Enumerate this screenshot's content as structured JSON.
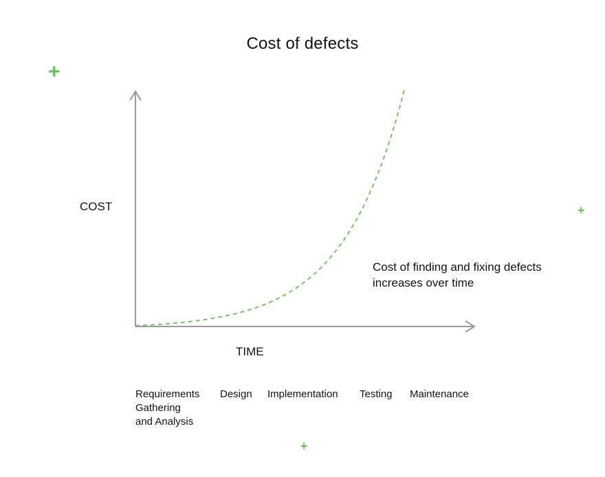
{
  "chart_data": {
    "type": "line",
    "title": "Cost of defects",
    "xlabel": "TIME",
    "ylabel": "COST",
    "annotation": "Cost of finding and fixing defects increases over time",
    "phases": [
      "Requirements\nGathering\nand Analysis",
      "Design",
      "Implementation",
      "Testing",
      "Maintenance"
    ],
    "curve": {
      "style": "dashed",
      "shape": "exponential",
      "color": "#7cbf6a"
    },
    "axis_color": "#9a9a9a",
    "grid": false
  },
  "decorations": {
    "plus_color": "#6cbf5b",
    "plus_symbol": "+"
  }
}
